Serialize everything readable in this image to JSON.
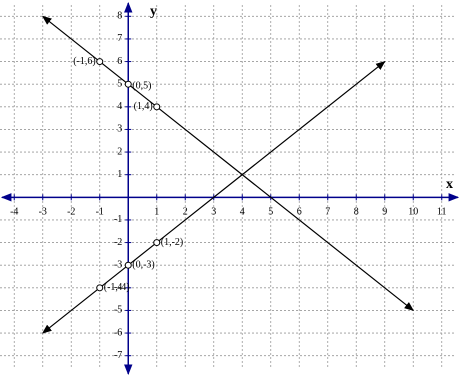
{
  "chart_data": {
    "type": "line",
    "x_label": "x",
    "y_label": "y",
    "xlim": [
      -4.5,
      11.5
    ],
    "ylim": [
      -7.5,
      8.5
    ],
    "xticks": [
      -4,
      -3,
      -2,
      -1,
      1,
      2,
      3,
      4,
      5,
      6,
      7,
      8,
      9,
      10,
      11
    ],
    "yticks": [
      8,
      7,
      6,
      5,
      4,
      3,
      2,
      1,
      -1,
      -2,
      -3,
      -4,
      -5,
      -6,
      -7
    ],
    "grid": true,
    "series": [
      {
        "color": "#000000",
        "x": [
          -3,
          -1,
          0,
          1,
          10
        ],
        "values": [
          8,
          6,
          5,
          4,
          -5
        ],
        "value_labels": [
          null,
          "(-1,6)",
          "(0,5)",
          "(1,4)",
          null
        ]
      },
      {
        "color": "#000000",
        "x": [
          -3,
          -1,
          0,
          1,
          9
        ],
        "values": [
          -6,
          -4,
          -3,
          -2,
          6
        ],
        "value_labels": [
          null,
          "(-1,-4)",
          "(0,-3)",
          "(1,-2)",
          null
        ]
      }
    ]
  }
}
